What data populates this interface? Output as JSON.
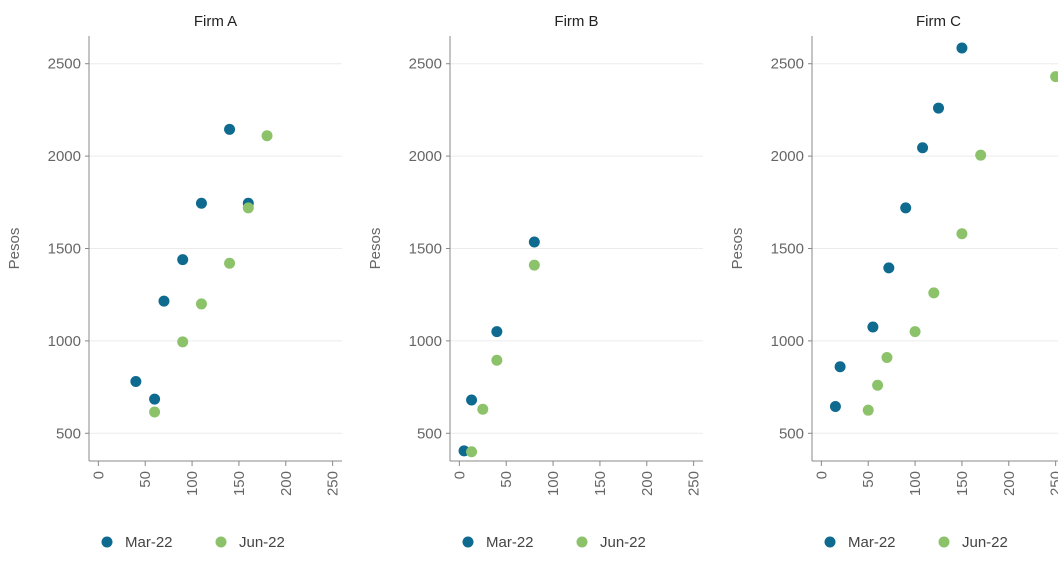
{
  "chart_data": [
    {
      "type": "scatter",
      "title": "Firm A",
      "ylabel": "Pesos",
      "xlabel": "",
      "xlim": [
        -10,
        260
      ],
      "ylim": [
        350,
        2650
      ],
      "xticks": [
        "0",
        "50",
        "100",
        "150",
        "200",
        "250"
      ],
      "yticks": [
        "500",
        "1000",
        "1500",
        "2000",
        "2500"
      ],
      "grid": true,
      "legend": "bottom",
      "series": [
        {
          "name": "Mar-22",
          "color": "#0e6a8f",
          "points": [
            {
              "x": 40,
              "y": 780
            },
            {
              "x": 60,
              "y": 685
            },
            {
              "x": 70,
              "y": 1215
            },
            {
              "x": 90,
              "y": 1440
            },
            {
              "x": 110,
              "y": 1745
            },
            {
              "x": 140,
              "y": 2145
            },
            {
              "x": 160,
              "y": 1745
            }
          ]
        },
        {
          "name": "Jun-22",
          "color": "#8cc36a",
          "points": [
            {
              "x": 60,
              "y": 615
            },
            {
              "x": 90,
              "y": 995
            },
            {
              "x": 110,
              "y": 1200
            },
            {
              "x": 140,
              "y": 1420
            },
            {
              "x": 160,
              "y": 1720
            },
            {
              "x": 180,
              "y": 2110
            }
          ]
        }
      ]
    },
    {
      "type": "scatter",
      "title": "Firm B",
      "ylabel": "Pesos",
      "xlabel": "",
      "xlim": [
        -10,
        260
      ],
      "ylim": [
        350,
        2650
      ],
      "xticks": [
        "0",
        "50",
        "100",
        "150",
        "200",
        "250"
      ],
      "yticks": [
        "500",
        "1000",
        "1500",
        "2000",
        "2500"
      ],
      "grid": true,
      "legend": "bottom",
      "series": [
        {
          "name": "Mar-22",
          "color": "#0e6a8f",
          "points": [
            {
              "x": 5,
              "y": 405
            },
            {
              "x": 13,
              "y": 680
            },
            {
              "x": 40,
              "y": 1050
            },
            {
              "x": 80,
              "y": 1535
            }
          ]
        },
        {
          "name": "Jun-22",
          "color": "#8cc36a",
          "points": [
            {
              "x": 13,
              "y": 400
            },
            {
              "x": 25,
              "y": 630
            },
            {
              "x": 40,
              "y": 895
            },
            {
              "x": 80,
              "y": 1410
            }
          ]
        }
      ]
    },
    {
      "type": "scatter",
      "title": "Firm C",
      "ylabel": "Pesos",
      "xlabel": "",
      "xlim": [
        -10,
        260
      ],
      "ylim": [
        350,
        2650
      ],
      "xticks": [
        "0",
        "50",
        "100",
        "150",
        "200",
        "250"
      ],
      "yticks": [
        "500",
        "1000",
        "1500",
        "2000",
        "2500"
      ],
      "grid": true,
      "legend": "bottom",
      "series": [
        {
          "name": "Mar-22",
          "color": "#0e6a8f",
          "points": [
            {
              "x": 15,
              "y": 645
            },
            {
              "x": 20,
              "y": 860
            },
            {
              "x": 55,
              "y": 1075
            },
            {
              "x": 72,
              "y": 1395
            },
            {
              "x": 90,
              "y": 1720
            },
            {
              "x": 108,
              "y": 2045
            },
            {
              "x": 125,
              "y": 2260
            },
            {
              "x": 150,
              "y": 2585
            }
          ]
        },
        {
          "name": "Jun-22",
          "color": "#8cc36a",
          "points": [
            {
              "x": 50,
              "y": 625
            },
            {
              "x": 60,
              "y": 760
            },
            {
              "x": 70,
              "y": 910
            },
            {
              "x": 100,
              "y": 1050
            },
            {
              "x": 120,
              "y": 1260
            },
            {
              "x": 150,
              "y": 1580
            },
            {
              "x": 170,
              "y": 2005
            },
            {
              "x": 250,
              "y": 2430
            }
          ]
        }
      ]
    }
  ]
}
